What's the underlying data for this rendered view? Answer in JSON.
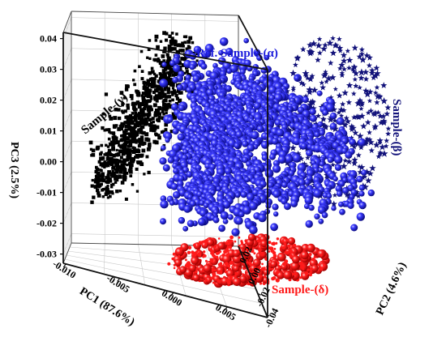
{
  "chart_data": {
    "type": "scatter",
    "projection": "3d",
    "title": "",
    "axes": {
      "x": {
        "label": "PC1 (87.6%)",
        "range": [
          -0.01,
          0.008
        ],
        "ticks": [
          "-0.010",
          "-0.005",
          "0.000",
          "0.005"
        ]
      },
      "y": {
        "label": "PC2 (4.6%)",
        "range": [
          -0.04,
          0.02
        ],
        "ticks": [
          "-0.04",
          "-0.02",
          "0.00",
          "0.02"
        ]
      },
      "z": {
        "label": "PC3 (2.5%)",
        "range": [
          -0.03,
          0.04
        ],
        "ticks": [
          "-0.03",
          "-0.02",
          "-0.01",
          "0.00",
          "0.01",
          "0.02",
          "0.03",
          "0.04"
        ]
      }
    },
    "grid": true,
    "series": [
      {
        "name": "Sample-(γ)",
        "marker": "square",
        "color": "#000000"
      },
      {
        "name": "Ref. Sample-(α)",
        "marker": "sphere",
        "color": "#1a1adc"
      },
      {
        "name": "Sample-(β)",
        "marker": "star",
        "color": "#12127a"
      },
      {
        "name": "Sample-(δ)",
        "marker": "sphere",
        "color": "#ff1a1a"
      }
    ]
  }
}
